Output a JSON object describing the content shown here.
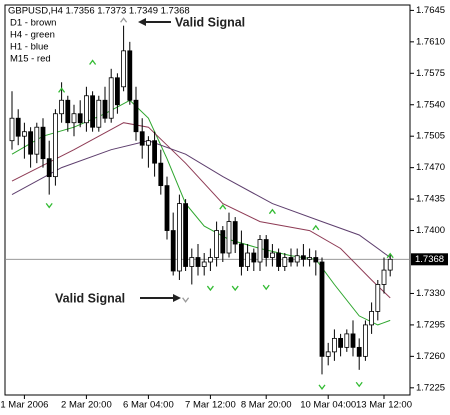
{
  "chart_data": {
    "type": "candlestick",
    "header": "GBPUSD,H4  1.7356 1.7373 1.7349 1.7368",
    "notes": [
      "D1 - brown",
      "H4 - green",
      "H1 - blue",
      "M15 - red"
    ],
    "annotations": [
      "Valid Signal",
      "Valid Signal"
    ],
    "categories": [
      null,
      null,
      "1 Mar 2006",
      null,
      null,
      null,
      null,
      null,
      null,
      null,
      null,
      null,
      "2 Mar 20:00",
      null,
      null,
      null,
      null,
      null,
      null,
      null,
      null,
      null,
      "6 Mar 04:00",
      null,
      null,
      null,
      null,
      null,
      null,
      null,
      null,
      null,
      "7 Mar 12:00",
      null,
      null,
      null,
      null,
      null,
      null,
      null,
      null,
      "8 Mar 20:00",
      null,
      null,
      null,
      null,
      null,
      null,
      null,
      null,
      null,
      "10 Mar 04:00",
      null,
      null,
      null,
      null,
      null,
      null,
      null,
      null,
      "13 Mar 12:00",
      null
    ],
    "open": [
      1.75,
      1.7525,
      1.7505,
      1.751,
      1.7485,
      1.7515,
      1.748,
      1.746,
      1.753,
      1.7545,
      1.752,
      1.753,
      1.752,
      1.755,
      1.7515,
      1.7545,
      1.7525,
      1.757,
      1.756,
      1.76,
      1.7545,
      1.751,
      1.7495,
      1.75,
      1.7475,
      1.745,
      1.74,
      1.7355,
      1.743,
      1.736,
      1.737,
      1.736,
      1.7365,
      1.737,
      1.74,
      1.7375,
      1.741,
      1.7385,
      1.736,
      1.7375,
      1.7365,
      1.739,
      1.737,
      1.7375,
      1.736,
      1.737,
      1.7365,
      1.7372,
      1.7368,
      1.737,
      1.7365,
      1.726,
      1.7265,
      1.728,
      1.727,
      1.7285,
      1.727,
      1.726,
      1.7295,
      1.731,
      1.734,
      1.7356
    ],
    "high": [
      1.7555,
      1.7535,
      1.752,
      1.7515,
      1.752,
      1.7525,
      1.75,
      1.7535,
      1.7565,
      1.755,
      1.754,
      1.7545,
      1.756,
      1.7555,
      1.755,
      1.756,
      1.758,
      1.7575,
      1.7628,
      1.761,
      1.756,
      1.7525,
      1.7505,
      1.751,
      1.749,
      1.746,
      1.742,
      1.744,
      1.7435,
      1.738,
      1.7385,
      1.7375,
      1.738,
      1.741,
      1.7405,
      1.742,
      1.7415,
      1.74,
      1.7385,
      1.738,
      1.7395,
      1.7395,
      1.7385,
      1.738,
      1.7375,
      1.738,
      1.738,
      1.7385,
      1.738,
      1.7378,
      1.737,
      1.7275,
      1.729,
      1.7285,
      1.729,
      1.73,
      1.728,
      1.73,
      1.732,
      1.7345,
      1.737,
      1.7373
    ],
    "low": [
      1.749,
      1.7495,
      1.748,
      1.747,
      1.7475,
      1.747,
      1.744,
      1.745,
      1.752,
      1.751,
      1.7505,
      1.7515,
      1.751,
      1.751,
      1.751,
      1.752,
      1.752,
      1.753,
      1.7555,
      1.754,
      1.75,
      1.748,
      1.747,
      1.746,
      1.744,
      1.739,
      1.735,
      1.7345,
      1.7355,
      1.734,
      1.735,
      1.735,
      1.7355,
      1.736,
      1.7365,
      1.737,
      1.7375,
      1.735,
      1.7355,
      1.7355,
      1.7355,
      1.736,
      1.736,
      1.7355,
      1.7355,
      1.736,
      1.736,
      1.736,
      1.736,
      1.735,
      1.724,
      1.725,
      1.7255,
      1.726,
      1.7265,
      1.726,
      1.7245,
      1.7255,
      1.7285,
      1.73,
      1.733,
      1.7349
    ],
    "close": [
      1.7525,
      1.7505,
      1.751,
      1.7485,
      1.7515,
      1.748,
      1.746,
      1.753,
      1.7545,
      1.752,
      1.753,
      1.752,
      1.755,
      1.7515,
      1.7545,
      1.7525,
      1.757,
      1.754,
      1.76,
      1.7545,
      1.751,
      1.7495,
      1.75,
      1.7475,
      1.745,
      1.74,
      1.7355,
      1.743,
      1.736,
      1.737,
      1.736,
      1.7365,
      1.737,
      1.74,
      1.7375,
      1.741,
      1.7385,
      1.736,
      1.7375,
      1.7365,
      1.739,
      1.737,
      1.7375,
      1.736,
      1.737,
      1.7365,
      1.7372,
      1.7368,
      1.737,
      1.7365,
      1.726,
      1.7265,
      1.728,
      1.727,
      1.7285,
      1.727,
      1.726,
      1.7295,
      1.731,
      1.734,
      1.7356,
      1.7368
    ],
    "up_color": "#ffffff",
    "down_color": "#000000",
    "outline_color": "#000000",
    "lines": [
      {
        "color": "#2ea62e",
        "x": [
          0,
          5,
          10,
          15,
          19,
          22,
          25,
          28,
          31,
          35,
          40,
          45,
          49,
          52,
          56,
          59,
          61
        ],
        "values": [
          1.7485,
          1.7505,
          1.7515,
          1.753,
          1.7545,
          1.7525,
          1.748,
          1.743,
          1.7405,
          1.739,
          1.738,
          1.7372,
          1.7368,
          1.734,
          1.7305,
          1.7295,
          1.73
        ]
      },
      {
        "color": "#8e3b55",
        "x": [
          0,
          10,
          18,
          22,
          28,
          34,
          40,
          48,
          53,
          58,
          61
        ],
        "values": [
          1.7455,
          1.749,
          1.752,
          1.7515,
          1.7475,
          1.743,
          1.741,
          1.74,
          1.738,
          1.7345,
          1.7325
        ]
      },
      {
        "color": "#5e3f6e",
        "x": [
          0,
          8,
          16,
          22,
          28,
          34,
          42,
          50,
          56,
          61
        ],
        "values": [
          1.744,
          1.747,
          1.749,
          1.75,
          1.7485,
          1.746,
          1.743,
          1.741,
          1.7395,
          1.737
        ]
      }
    ],
    "signals": [
      {
        "x": 6,
        "value": 1.7428,
        "dir": "down",
        "color": "#33bb33"
      },
      {
        "x": 8,
        "value": 1.7556,
        "dir": "up",
        "color": "#33bb33"
      },
      {
        "x": 13,
        "value": 1.7587,
        "dir": "up",
        "color": "#33bb33"
      },
      {
        "x": 18,
        "value": 1.7634,
        "dir": "up",
        "color": "#999999"
      },
      {
        "x": 28,
        "value": 1.7323,
        "dir": "down",
        "color": "#999999"
      },
      {
        "x": 32,
        "value": 1.7336,
        "dir": "down",
        "color": "#33bb33"
      },
      {
        "x": 34,
        "value": 1.7426,
        "dir": "up",
        "color": "#33bb33"
      },
      {
        "x": 36,
        "value": 1.7336,
        "dir": "down",
        "color": "#33bb33"
      },
      {
        "x": 41,
        "value": 1.7337,
        "dir": "down",
        "color": "#33bb33"
      },
      {
        "x": 42,
        "value": 1.7421,
        "dir": "up",
        "color": "#33bb33"
      },
      {
        "x": 49,
        "value": 1.7403,
        "dir": "up",
        "color": "#33bb33"
      },
      {
        "x": 50,
        "value": 1.7226,
        "dir": "down",
        "color": "#33bb33"
      },
      {
        "x": 56,
        "value": 1.7229,
        "dir": "down",
        "color": "#33bb33"
      },
      {
        "x": 61,
        "value": 1.7372,
        "dir": "up",
        "color": "#33bb33"
      }
    ],
    "current_price": 1.7368,
    "ylim": [
      1.7217,
      1.7651
    ],
    "yticks": [
      {
        "value": 1.7645,
        "label": "1.7645"
      },
      {
        "value": 1.761,
        "label": "1.7610"
      },
      {
        "value": 1.7575,
        "label": "1.7575"
      },
      {
        "value": 1.754,
        "label": "1.7540"
      },
      {
        "value": 1.7505,
        "label": "1.7505"
      },
      {
        "value": 1.747,
        "label": "1.7470"
      },
      {
        "value": 1.7435,
        "label": "1.7435"
      },
      {
        "value": 1.74,
        "label": "1.7400"
      },
      {
        "value": 1.733,
        "label": "1.7330"
      },
      {
        "value": 1.7295,
        "label": "1.7295"
      },
      {
        "value": 1.726,
        "label": "1.7260"
      },
      {
        "value": 1.7225,
        "label": "1.7225"
      }
    ]
  }
}
